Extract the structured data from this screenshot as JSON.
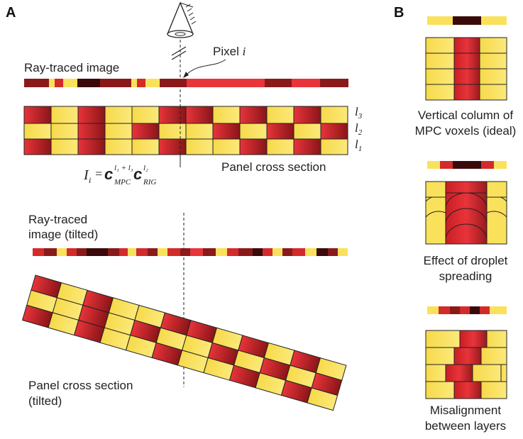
{
  "panel_A": {
    "label": "A",
    "pixel_label": "Pixel",
    "pixel_var": "i",
    "ray_image_label": "Ray-traced image",
    "layers": [
      "l",
      "l",
      "l"
    ],
    "layer_subs": [
      "3",
      "2",
      "1"
    ],
    "panel_label": "Panel cross section",
    "eq_I": "I",
    "eq_I_sub": "i",
    "eq_eq": "=",
    "eq_c": "c",
    "eq_mpc_sup": "l₁ + l₃",
    "eq_mpc_sub": "MPC",
    "eq_rig_sup": "l₂",
    "eq_rig_sub": "RIG",
    "tilted_image_label_1": "Ray-traced",
    "tilted_image_label_2": "image (tilted)",
    "tilted_panel_label_1": "Panel cross section",
    "tilted_panel_label_2": "(tilted)"
  },
  "panel_B": {
    "label": "B",
    "caption1_1": "Vertical column of",
    "caption1_2": "MPC voxels (ideal)",
    "caption2_1": "Effect of droplet",
    "caption2_2": "spreading",
    "caption3_1": "Misalignment",
    "caption3_2": "between layers"
  },
  "colors": {
    "yellow": "#f9e15c",
    "red": "#d42a2a",
    "dark_red": "#8a1a1a",
    "darkest": "#3a0a0a",
    "bright_red": "#e8343a",
    "outline": "#222222"
  },
  "icons": {
    "camera": "camera-cone-icon"
  }
}
